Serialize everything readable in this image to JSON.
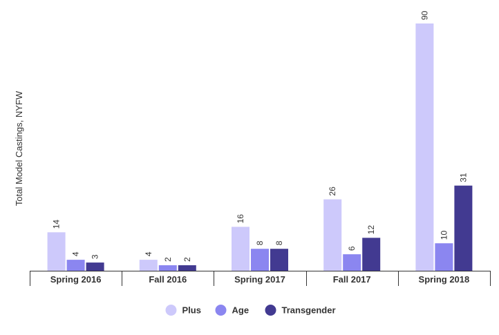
{
  "chart_data": {
    "type": "bar",
    "title": "",
    "xlabel": "",
    "ylabel": "Total Model Castings, NYFW",
    "categories": [
      "Spring 2016",
      "Fall 2016",
      "Spring 2017",
      "Fall 2017",
      "Spring 2018"
    ],
    "series": [
      {
        "name": "Plus",
        "values": [
          14,
          4,
          16,
          26,
          90
        ],
        "color": "#cdc9fb"
      },
      {
        "name": "Age",
        "values": [
          4,
          2,
          8,
          6,
          10
        ],
        "color": "#8b86f0"
      },
      {
        "name": "Transgender",
        "values": [
          3,
          2,
          8,
          12,
          31
        ],
        "color": "#423a91"
      }
    ],
    "ylim": [
      0,
      90
    ],
    "grid": false,
    "legend_position": "bottom"
  }
}
